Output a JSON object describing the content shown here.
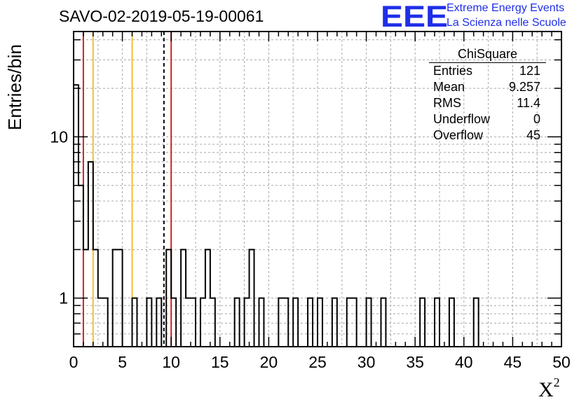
{
  "chart_data": {
    "type": "bar",
    "title": "SAVO-02-2019-05-19-00061",
    "xlabel": "X",
    "xlabel_superscript": "2",
    "ylabel": "Entries/bin",
    "xlim": [
      0,
      50
    ],
    "ylim": [
      0.5,
      45
    ],
    "yscale": "log",
    "grid": true,
    "bin_width": 0.5,
    "xticks": [
      "0",
      "5",
      "10",
      "15",
      "20",
      "25",
      "30",
      "35",
      "40",
      "45",
      "50"
    ],
    "yticks": [
      "1",
      "10"
    ],
    "bins": [
      {
        "x": 0.0,
        "y": 21
      },
      {
        "x": 0.5,
        "y": 5
      },
      {
        "x": 1.0,
        "y": 2
      },
      {
        "x": 1.5,
        "y": 7
      },
      {
        "x": 2.0,
        "y": 2
      },
      {
        "x": 2.5,
        "y": 1
      },
      {
        "x": 3.0,
        "y": 1
      },
      {
        "x": 4.0,
        "y": 2
      },
      {
        "x": 4.5,
        "y": 2
      },
      {
        "x": 6.0,
        "y": 1
      },
      {
        "x": 7.5,
        "y": 1
      },
      {
        "x": 8.5,
        "y": 1
      },
      {
        "x": 9.5,
        "y": 2
      },
      {
        "x": 10.0,
        "y": 1
      },
      {
        "x": 11.0,
        "y": 2
      },
      {
        "x": 11.5,
        "y": 1
      },
      {
        "x": 12.0,
        "y": 1
      },
      {
        "x": 13.0,
        "y": 1
      },
      {
        "x": 13.5,
        "y": 2
      },
      {
        "x": 14.0,
        "y": 1
      },
      {
        "x": 16.5,
        "y": 1
      },
      {
        "x": 17.5,
        "y": 1
      },
      {
        "x": 18.0,
        "y": 2
      },
      {
        "x": 19.0,
        "y": 1
      },
      {
        "x": 21.0,
        "y": 1
      },
      {
        "x": 21.5,
        "y": 1
      },
      {
        "x": 22.5,
        "y": 1
      },
      {
        "x": 24.0,
        "y": 1
      },
      {
        "x": 25.0,
        "y": 1
      },
      {
        "x": 26.5,
        "y": 1
      },
      {
        "x": 28.0,
        "y": 1
      },
      {
        "x": 28.5,
        "y": 1
      },
      {
        "x": 30.0,
        "y": 1
      },
      {
        "x": 31.5,
        "y": 1
      },
      {
        "x": 35.5,
        "y": 1
      },
      {
        "x": 37.0,
        "y": 1
      },
      {
        "x": 38.5,
        "y": 1
      },
      {
        "x": 41.0,
        "y": 1
      }
    ],
    "reference_lines": [
      {
        "x": 1.0,
        "color": "#d42020",
        "style": "solid"
      },
      {
        "x": 2.0,
        "color": "#f2c030",
        "style": "solid"
      },
      {
        "x": 6.0,
        "color": "#f2c030",
        "style": "solid"
      },
      {
        "x": 9.257,
        "color": "#000000",
        "style": "dashed"
      },
      {
        "x": 10.0,
        "color": "#d42020",
        "style": "solid"
      }
    ],
    "stats": {
      "title": "ChiSquare",
      "rows": [
        {
          "label": "Entries",
          "value": "121"
        },
        {
          "label": "Mean",
          "value": "9.257"
        },
        {
          "label": "RMS",
          "value": "11.4"
        },
        {
          "label": "Underflow",
          "value": "0"
        },
        {
          "label": "Overflow",
          "value": "45"
        }
      ]
    }
  },
  "logo": {
    "text": "EEE",
    "line1": "Extreme Energy Events",
    "line2": "La Scienza nelle Scuole",
    "color": "#1f2ee8"
  }
}
